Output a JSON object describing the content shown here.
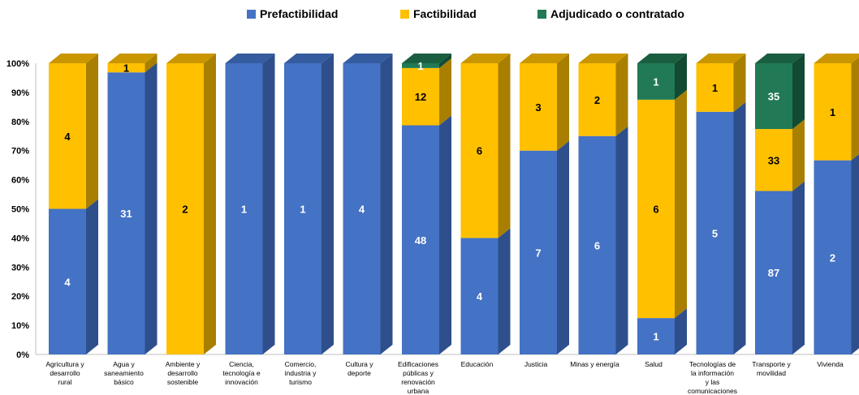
{
  "chart_data": {
    "type": "bar",
    "stacked": "percent",
    "three_d": true,
    "categories": [
      "Agricultura y desarrollo rural",
      "Agua y saneamiento básico",
      "Ambiente y desarrollo sostenible",
      "Ciencia, tecnología e innovación",
      "Comercio, industria y turismo",
      "Cultura y deporte",
      "Edificaciones públicas y renovación urbana",
      "Educación",
      "Justicia",
      "Minas y energía",
      "Salud",
      "Tecnologías de la información y las comunicaciones",
      "Transporte y movilidad",
      "Vivienda"
    ],
    "series": [
      {
        "name": "Prefactibilidad",
        "color": "#4472C4",
        "values": [
          4,
          31,
          0,
          1,
          1,
          4,
          48,
          4,
          7,
          6,
          1,
          5,
          87,
          2
        ]
      },
      {
        "name": "Factibilidad",
        "color": "#FFC000",
        "values": [
          4,
          1,
          2,
          0,
          0,
          0,
          12,
          6,
          3,
          2,
          6,
          1,
          33,
          1
        ]
      },
      {
        "name": "Adjudicado o contratado",
        "color": "#217A55",
        "values": [
          0,
          0,
          0,
          0,
          0,
          0,
          1,
          0,
          0,
          0,
          1,
          0,
          35,
          0
        ]
      }
    ],
    "yaxis_ticks": [
      "0%",
      "10%",
      "20%",
      "30%",
      "40%",
      "50%",
      "60%",
      "70%",
      "80%",
      "90%",
      "100%"
    ],
    "ylim": [
      0,
      100
    ],
    "legend": "top",
    "grid": false
  }
}
